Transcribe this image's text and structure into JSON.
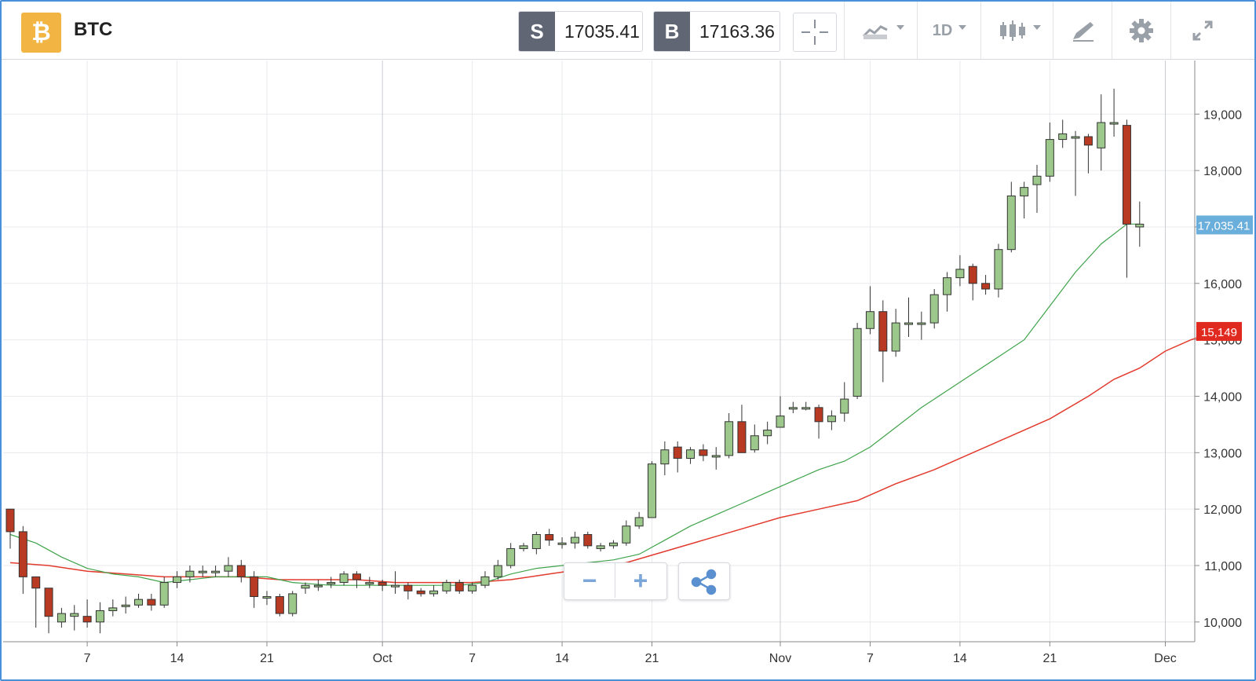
{
  "header": {
    "asset": "BTC",
    "logo_symbol": "₿",
    "sell_label": "S",
    "sell_price": "17035.41",
    "buy_label": "B",
    "buy_price": "17163.36",
    "timeframe": "1D"
  },
  "icons": [
    "crosshair-icon",
    "chart-type-icon",
    "candlestick-icon",
    "draw-tool-icon",
    "gear-icon",
    "expand-icon",
    "minus-icon",
    "plus-icon",
    "share-icon"
  ],
  "colors": {
    "up": "#9dc88b",
    "down": "#b83a22",
    "ma_fast": "#3ea34a",
    "ma_slow": "#e23b2e",
    "last_price_tag": "#6aaedb",
    "ma_tag": "#e12a1f",
    "frame": "#4a90d9"
  },
  "chart_data": {
    "type": "candlestick",
    "yticks": [
      10000,
      11000,
      12000,
      13000,
      14000,
      15000,
      16000,
      17000,
      18000,
      19000
    ],
    "ytick_labels": [
      "10,000",
      "11,000",
      "12,000",
      "13,000",
      "14,000",
      "15,000",
      "16,000",
      "17,000",
      "18,000",
      "19,000"
    ],
    "ylim": [
      9650,
      19950
    ],
    "x_labels": [
      "7",
      "14",
      "21",
      "Oct",
      "7",
      "14",
      "21",
      "Nov",
      "7",
      "14",
      "21",
      "Dec"
    ],
    "x_label_days": [
      7,
      14,
      21,
      30,
      37,
      44,
      51,
      61,
      68,
      75,
      82,
      91
    ],
    "first_day": 1,
    "last_price_label": "17,035.41",
    "last_price": 17035.41,
    "ma_label": "15,149",
    "ma_value": 15149,
    "candles": [
      [
        1,
        12000,
        11600,
        12000,
        11300
      ],
      [
        2,
        11600,
        10800,
        11700,
        10500
      ],
      [
        3,
        10800,
        10600,
        10800,
        9900
      ],
      [
        4,
        10600,
        10100,
        10600,
        9800
      ],
      [
        5,
        10000,
        10150,
        10250,
        9900
      ],
      [
        6,
        10100,
        10150,
        10300,
        9850
      ],
      [
        7,
        10100,
        10000,
        10400,
        9900
      ],
      [
        8,
        10000,
        10200,
        10350,
        9800
      ],
      [
        9,
        10200,
        10250,
        10400,
        10100
      ],
      [
        10,
        10300,
        10300,
        10450,
        10150
      ],
      [
        11,
        10300,
        10400,
        10500,
        10250
      ],
      [
        12,
        10400,
        10300,
        10500,
        10200
      ],
      [
        13,
        10300,
        10700,
        10800,
        10250
      ],
      [
        14,
        10700,
        10800,
        10900,
        10600
      ],
      [
        15,
        10800,
        10900,
        11000,
        10700
      ],
      [
        16,
        10900,
        10900,
        11000,
        10800
      ],
      [
        17,
        10900,
        10900,
        11000,
        10800
      ],
      [
        18,
        10900,
        11000,
        11150,
        10800
      ],
      [
        19,
        11000,
        10800,
        11100,
        10700
      ],
      [
        20,
        10800,
        10450,
        10900,
        10250
      ],
      [
        21,
        10450,
        10450,
        10550,
        10300
      ],
      [
        22,
        10450,
        10150,
        10500,
        10100
      ],
      [
        23,
        10150,
        10500,
        10550,
        10100
      ],
      [
        24,
        10600,
        10650,
        10700,
        10500
      ],
      [
        25,
        10650,
        10650,
        10750,
        10550
      ],
      [
        26,
        10700,
        10700,
        10800,
        10600
      ],
      [
        27,
        10700,
        10850,
        10900,
        10650
      ],
      [
        28,
        10850,
        10750,
        10900,
        10600
      ],
      [
        29,
        10700,
        10700,
        10800,
        10600
      ],
      [
        30,
        10700,
        10650,
        10750,
        10550
      ],
      [
        31,
        10650,
        10650,
        10900,
        10500
      ],
      [
        32,
        10650,
        10550,
        10700,
        10400
      ],
      [
        33,
        10550,
        10500,
        10600,
        10450
      ],
      [
        34,
        10500,
        10550,
        10650,
        10450
      ],
      [
        35,
        10550,
        10700,
        10750,
        10500
      ],
      [
        36,
        10700,
        10550,
        10750,
        10500
      ],
      [
        37,
        10550,
        10650,
        10700,
        10500
      ],
      [
        38,
        10650,
        10800,
        10900,
        10600
      ],
      [
        39,
        10800,
        11000,
        11100,
        10750
      ],
      [
        40,
        11000,
        11300,
        11400,
        10950
      ],
      [
        41,
        11300,
        11350,
        11400,
        11250
      ],
      [
        42,
        11300,
        11550,
        11600,
        11200
      ],
      [
        43,
        11550,
        11450,
        11650,
        11350
      ],
      [
        44,
        11400,
        11400,
        11500,
        11300
      ],
      [
        45,
        11400,
        11500,
        11600,
        11300
      ],
      [
        46,
        11550,
        11350,
        11600,
        11300
      ],
      [
        47,
        11300,
        11350,
        11400,
        11250
      ],
      [
        48,
        11350,
        11400,
        11450,
        11300
      ],
      [
        49,
        11400,
        11700,
        11800,
        11350
      ],
      [
        50,
        11700,
        11850,
        11950,
        11650
      ],
      [
        51,
        11850,
        12800,
        12850,
        11850
      ],
      [
        52,
        12800,
        13050,
        13200,
        12600
      ],
      [
        53,
        13100,
        12900,
        13200,
        12650
      ],
      [
        54,
        12900,
        13050,
        13100,
        12800
      ],
      [
        55,
        13050,
        12950,
        13150,
        12850
      ],
      [
        56,
        12950,
        12950,
        13100,
        12700
      ],
      [
        57,
        12950,
        13550,
        13700,
        12900
      ],
      [
        58,
        13550,
        13000,
        13850,
        13000
      ],
      [
        59,
        13050,
        13300,
        13500,
        13000
      ],
      [
        60,
        13300,
        13400,
        13550,
        13150
      ],
      [
        61,
        13450,
        13650,
        14000,
        13450
      ],
      [
        62,
        13800,
        13800,
        13900,
        13700
      ],
      [
        63,
        13800,
        13800,
        13900,
        13750
      ],
      [
        64,
        13800,
        13550,
        13850,
        13250
      ],
      [
        65,
        13550,
        13650,
        13750,
        13400
      ],
      [
        66,
        13700,
        13950,
        14250,
        13550
      ],
      [
        67,
        14000,
        15200,
        15300,
        13950
      ],
      [
        68,
        15200,
        15500,
        15950,
        15100
      ],
      [
        69,
        15500,
        14800,
        15700,
        14250
      ],
      [
        70,
        14800,
        15300,
        15550,
        14700
      ],
      [
        71,
        15300,
        15300,
        15750,
        15050
      ],
      [
        72,
        15300,
        15300,
        15500,
        15000
      ],
      [
        73,
        15300,
        15800,
        15900,
        15200
      ],
      [
        74,
        15800,
        16100,
        16200,
        15500
      ],
      [
        75,
        16100,
        16250,
        16500,
        15950
      ],
      [
        76,
        16300,
        16000,
        16350,
        15700
      ],
      [
        77,
        16000,
        15900,
        16150,
        15800
      ],
      [
        78,
        15900,
        16600,
        16700,
        15750
      ],
      [
        79,
        16600,
        17550,
        17800,
        16550
      ],
      [
        80,
        17550,
        17700,
        17800,
        17150
      ],
      [
        81,
        17750,
        17900,
        18100,
        17250
      ],
      [
        82,
        17900,
        18550,
        18850,
        17800
      ],
      [
        83,
        18550,
        18650,
        18900,
        18400
      ],
      [
        84,
        18600,
        18600,
        18700,
        17550
      ],
      [
        85,
        18600,
        18450,
        18650,
        17950
      ],
      [
        86,
        18400,
        18850,
        19350,
        18000
      ],
      [
        87,
        18850,
        18850,
        19450,
        18600
      ],
      [
        88,
        18800,
        17050,
        18900,
        16100
      ],
      [
        89,
        17000,
        17050,
        17450,
        16650
      ]
    ],
    "ma_fast": [
      [
        1,
        11550
      ],
      [
        3,
        11400
      ],
      [
        5,
        11150
      ],
      [
        7,
        10950
      ],
      [
        9,
        10850
      ],
      [
        11,
        10800
      ],
      [
        13,
        10700
      ],
      [
        15,
        10750
      ],
      [
        17,
        10800
      ],
      [
        19,
        10800
      ],
      [
        21,
        10800
      ],
      [
        23,
        10700
      ],
      [
        26,
        10650
      ],
      [
        28,
        10650
      ],
      [
        31,
        10650
      ],
      [
        33,
        10650
      ],
      [
        36,
        10650
      ],
      [
        38,
        10700
      ],
      [
        40,
        10850
      ],
      [
        42,
        10950
      ],
      [
        44,
        11000
      ],
      [
        46,
        11050
      ],
      [
        48,
        11100
      ],
      [
        50,
        11200
      ],
      [
        52,
        11450
      ],
      [
        54,
        11700
      ],
      [
        56,
        11900
      ],
      [
        58,
        12100
      ],
      [
        60,
        12300
      ],
      [
        62,
        12500
      ],
      [
        64,
        12700
      ],
      [
        66,
        12850
      ],
      [
        68,
        13100
      ],
      [
        70,
        13450
      ],
      [
        72,
        13800
      ],
      [
        74,
        14100
      ],
      [
        76,
        14400
      ],
      [
        78,
        14700
      ],
      [
        80,
        15000
      ],
      [
        82,
        15600
      ],
      [
        84,
        16200
      ],
      [
        86,
        16700
      ],
      [
        88,
        17050
      ],
      [
        89,
        17050
      ]
    ],
    "ma_slow": [
      [
        1,
        11050
      ],
      [
        4,
        11000
      ],
      [
        7,
        10900
      ],
      [
        10,
        10850
      ],
      [
        13,
        10800
      ],
      [
        16,
        10800
      ],
      [
        19,
        10800
      ],
      [
        22,
        10750
      ],
      [
        25,
        10750
      ],
      [
        28,
        10750
      ],
      [
        31,
        10700
      ],
      [
        34,
        10700
      ],
      [
        37,
        10700
      ],
      [
        40,
        10750
      ],
      [
        43,
        10850
      ],
      [
        46,
        10950
      ],
      [
        49,
        11050
      ],
      [
        52,
        11250
      ],
      [
        55,
        11450
      ],
      [
        58,
        11650
      ],
      [
        61,
        11850
      ],
      [
        64,
        12000
      ],
      [
        67,
        12150
      ],
      [
        70,
        12450
      ],
      [
        73,
        12700
      ],
      [
        76,
        13000
      ],
      [
        79,
        13300
      ],
      [
        82,
        13600
      ],
      [
        85,
        14000
      ],
      [
        87,
        14300
      ],
      [
        89,
        14500
      ],
      [
        91,
        14800
      ],
      [
        93,
        15000
      ],
      [
        95,
        15149
      ]
    ]
  },
  "zoom": {
    "minus": "−",
    "plus": "+"
  }
}
